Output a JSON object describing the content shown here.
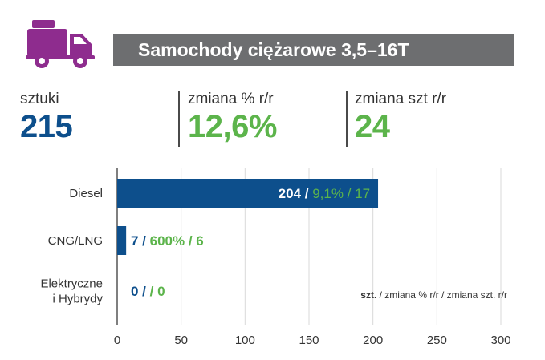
{
  "header": {
    "title": "Samochody ciężarowe 3,5–16T",
    "icon": "truck-icon"
  },
  "kpis": [
    {
      "label": "sztuki",
      "value": "215",
      "color": "#0d4f8c"
    },
    {
      "label": "zmiana % r/r",
      "value": "12,6%",
      "color": "#5cb44b"
    },
    {
      "label": "zmiana szt r/r",
      "value": "24",
      "color": "#5cb44b"
    }
  ],
  "chart_data": {
    "type": "bar",
    "orientation": "horizontal",
    "categories": [
      [
        "Diesel"
      ],
      [
        "CNG/LNG"
      ],
      [
        "Elektryczne",
        "i Hybrydy"
      ]
    ],
    "values": [
      204,
      7,
      0
    ],
    "bar_labels": [
      {
        "count": "204 /",
        "change": "9,1% / 17"
      },
      {
        "count": "7 /",
        "change": "600% / 6"
      },
      {
        "count": "0 /",
        "change": "/ 0"
      }
    ],
    "xlim": [
      0,
      300
    ],
    "xticks": [
      0,
      50,
      100,
      150,
      200,
      250,
      300
    ],
    "grid": true,
    "legend_bold": "szt.",
    "legend_rest": " / zmiana % r/r / zmiana szt. r/r",
    "colors": {
      "bar": "#0d4f8c",
      "count": "#0d4f8c",
      "change": "#5cb44b",
      "grid": "#d9d9d9"
    }
  }
}
